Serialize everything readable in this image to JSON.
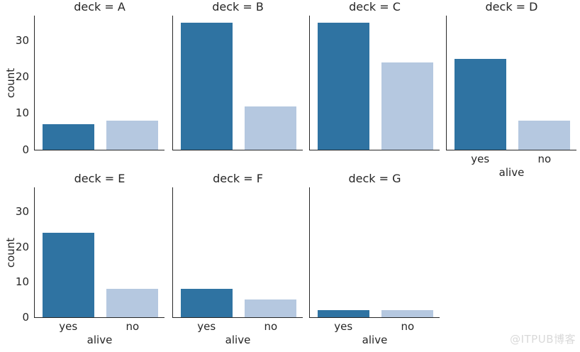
{
  "watermark": "@ITPUB博客",
  "chart_data": {
    "type": "bar",
    "facet_variable": "deck",
    "categories": [
      "yes",
      "no"
    ],
    "xlabel": "alive",
    "ylabel": "count",
    "yticks": [
      0,
      10,
      20,
      30
    ],
    "ylim": [
      0,
      37
    ],
    "grid": false,
    "legend": "none",
    "bar_colors": [
      "#2f73a2",
      "#b5c8e0"
    ],
    "facets": [
      {
        "title": "deck = A",
        "values": [
          7,
          8
        ]
      },
      {
        "title": "deck = B",
        "values": [
          35,
          12
        ]
      },
      {
        "title": "deck = C",
        "values": [
          35,
          24
        ]
      },
      {
        "title": "deck = D",
        "values": [
          25,
          8
        ]
      },
      {
        "title": "deck = E",
        "values": [
          24,
          8
        ]
      },
      {
        "title": "deck = F",
        "values": [
          8,
          5
        ]
      },
      {
        "title": "deck = G",
        "values": [
          2,
          2
        ]
      }
    ]
  }
}
